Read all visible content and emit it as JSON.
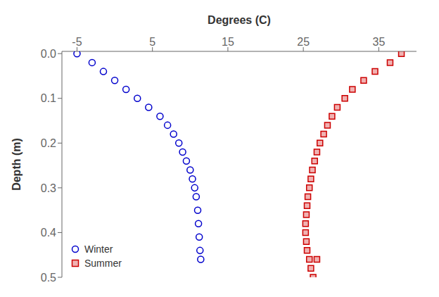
{
  "chart_data": {
    "type": "scatter",
    "xlabel": "Degrees (C)",
    "ylabel": "Depth (m)",
    "xlim": [
      -7,
      40
    ],
    "ylim": [
      0.5,
      -0.005
    ],
    "xticks": [
      -5,
      5,
      15,
      25,
      35
    ],
    "yticks": [
      {
        "value": 0,
        "label": "0.0"
      },
      0.1,
      0.2,
      0.3,
      0.4,
      0.5
    ],
    "grid": false,
    "legend": "lower left",
    "series": [
      {
        "name": "Winter",
        "color": "#0000CC",
        "marker": "circle",
        "x": [
          -5.0,
          -3.0,
          -1.5,
          0.0,
          1.5,
          3.0,
          4.5,
          6.0,
          7.0,
          7.8,
          8.5,
          9.0,
          9.5,
          10.0,
          10.3,
          10.6,
          10.8,
          11.0,
          11.1,
          11.2,
          11.3,
          11.4
        ],
        "values": [
          0.0,
          0.02,
          0.04,
          0.06,
          0.08,
          0.1,
          0.12,
          0.14,
          0.16,
          0.18,
          0.2,
          0.22,
          0.24,
          0.26,
          0.28,
          0.3,
          0.32,
          0.35,
          0.38,
          0.41,
          0.44,
          0.46
        ]
      },
      {
        "name": "Summer",
        "color": "#CC0000",
        "marker": "square",
        "x": [
          38.0,
          36.5,
          34.5,
          33.0,
          31.5,
          30.5,
          29.5,
          28.8,
          28.2,
          27.7,
          27.2,
          26.8,
          26.5,
          26.2,
          26.0,
          25.8,
          25.6,
          25.5,
          25.4,
          25.3,
          25.3,
          25.4,
          25.5,
          25.8,
          26.0,
          26.3,
          26.8
        ],
        "values": [
          0.0,
          0.02,
          0.04,
          0.06,
          0.08,
          0.1,
          0.12,
          0.14,
          0.16,
          0.18,
          0.2,
          0.22,
          0.24,
          0.26,
          0.28,
          0.3,
          0.32,
          0.34,
          0.36,
          0.38,
          0.4,
          0.42,
          0.44,
          0.46,
          0.48,
          0.5,
          0.46
        ]
      }
    ]
  }
}
